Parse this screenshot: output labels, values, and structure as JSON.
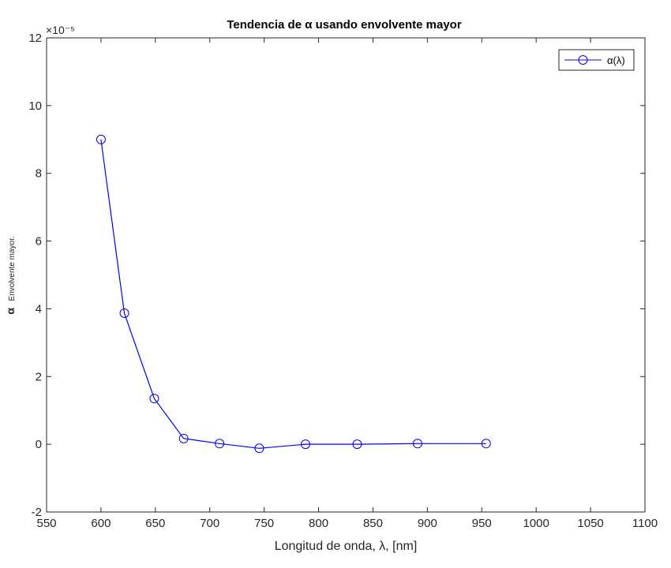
{
  "figure": {
    "background": "#ffffff",
    "axes_color": "#262626",
    "line_color": "#0000ff"
  },
  "chart_data": {
    "type": "line",
    "title": "Tendencia de α usando envolvente mayor",
    "xlabel": "Longitud de onda, λ, [nm]",
    "ylabel_main": "α",
    "ylabel_sub": "Envolvente mayor.",
    "exponent_label": "×10⁻⁵",
    "xlim": [
      550,
      1100
    ],
    "ylim": [
      -2,
      12
    ],
    "y_scale_factor": 1e-05,
    "xticks": [
      550,
      600,
      650,
      700,
      750,
      800,
      850,
      900,
      950,
      1000,
      1050,
      1100
    ],
    "yticks": [
      -2,
      0,
      2,
      4,
      6,
      8,
      10,
      12
    ],
    "grid": false,
    "legend_position": "top-right",
    "marker": "circle",
    "series": [
      {
        "name": "α(λ)",
        "x": [
          600,
          621.5,
          649,
          676,
          709,
          745.5,
          788,
          835.5,
          891,
          954
        ],
        "y": [
          9.0,
          3.87,
          1.35,
          0.17,
          0.02,
          -0.12,
          0.0,
          0.0,
          0.02,
          0.02
        ]
      }
    ]
  }
}
